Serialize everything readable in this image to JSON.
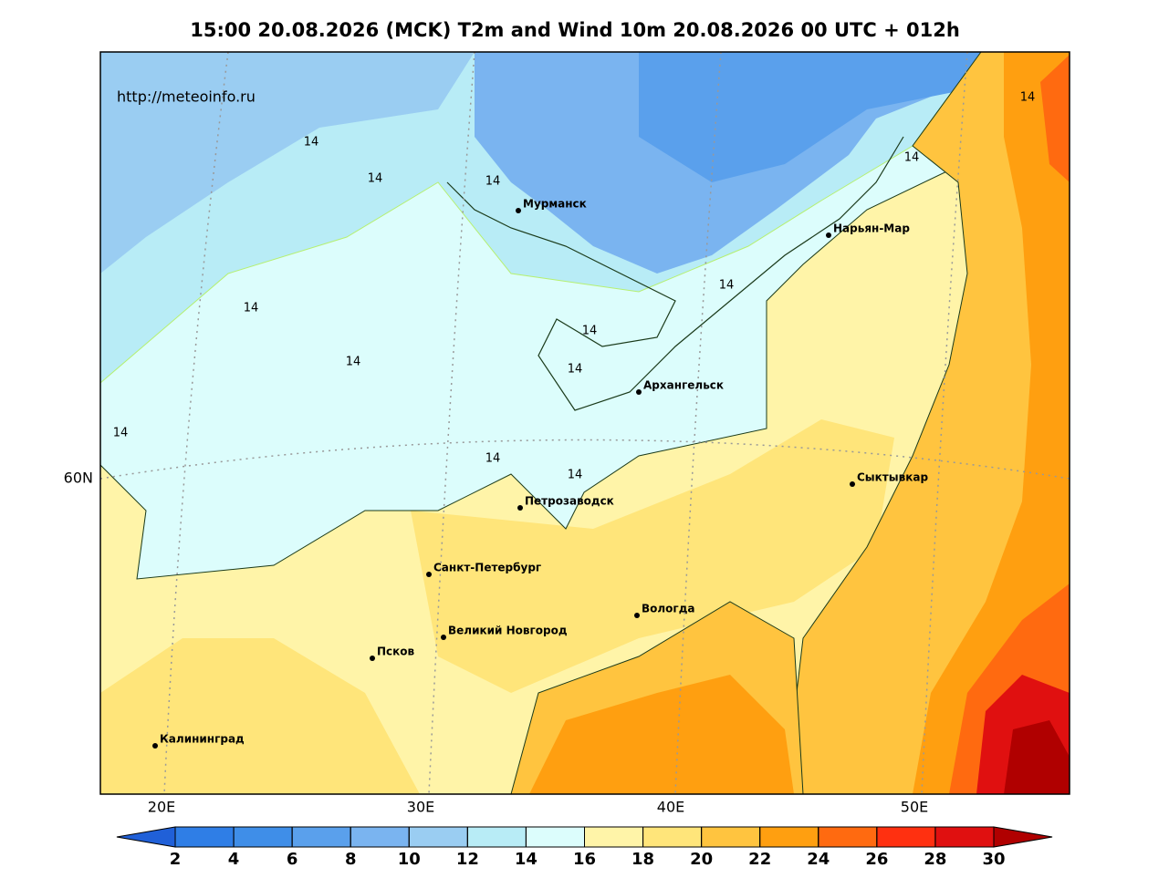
{
  "title": "15:00 20.08.2026 (MCK) T2m and Wind 10m 20.08.2026 00 UTC + 012h",
  "source": "http://meteoinfo.ru",
  "cities": [
    "Мурманск",
    "Нарьян-Мар",
    "Архангельск",
    "Сыктывкар",
    "Петрозаводск",
    "Санкт-Петербург",
    "Вологда",
    "Великий Новгород",
    "Псков",
    "Калининград"
  ],
  "contour_labels": [
    "14",
    "14",
    "14",
    "14",
    "14",
    "14",
    "14",
    "14",
    "14",
    "14",
    "14",
    "14",
    "14"
  ],
  "axis": {
    "longitude": [
      "20E",
      "30E",
      "40E",
      "50E"
    ],
    "latitude": [
      "60N"
    ]
  },
  "colorbar": {
    "colors": [
      "#2060d8",
      "#2f7ee6",
      "#3f8ee8",
      "#5aa0ec",
      "#7ab4f0",
      "#9acdf2",
      "#b8ecf6",
      "#dcfdfc",
      "#fff4a8",
      "#ffe57a",
      "#ffc43f",
      "#ff9f10",
      "#ff6a10",
      "#ff3010",
      "#e01010",
      "#b00000"
    ],
    "ticks": [
      2,
      4,
      6,
      8,
      10,
      12,
      14,
      16,
      18,
      20,
      22,
      24,
      26,
      28,
      30
    ]
  }
}
